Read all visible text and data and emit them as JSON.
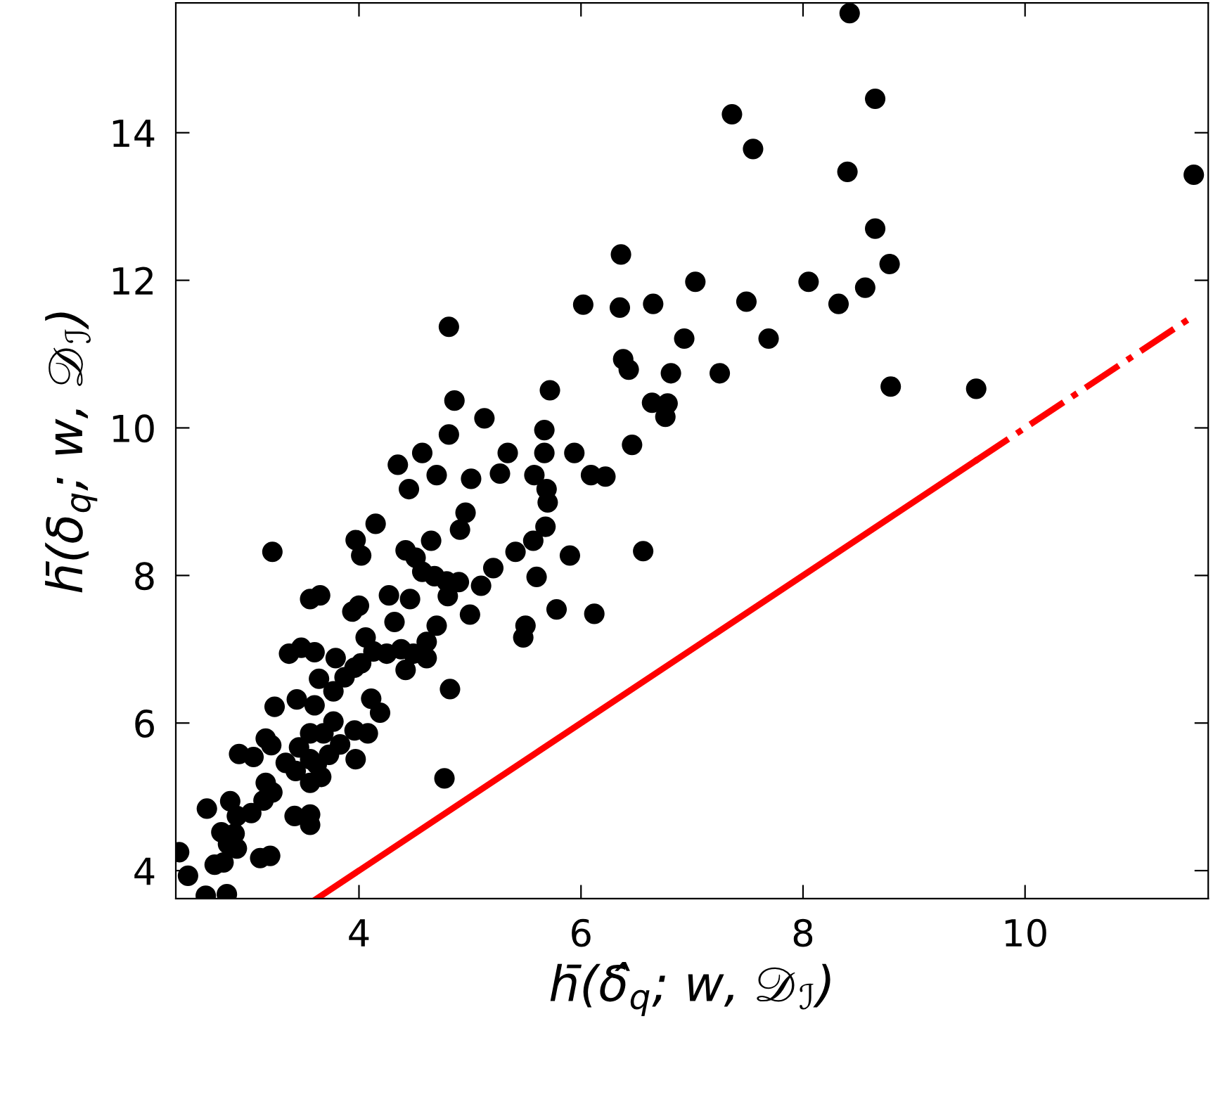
{
  "chart_data": {
    "type": "scatter",
    "xlabel": "h̄(δ̂$_{q}$; w, 𝒟$_{ℐ}$)",
    "ylabel": "h̄(δ$_{q}$; w, 𝒟$_{ℐ}$)",
    "xlim": [
      2.35,
      11.65
    ],
    "ylim": [
      3.62,
      15.76
    ],
    "xticks": [
      4,
      6,
      8,
      10
    ],
    "yticks": [
      4,
      6,
      8,
      10,
      12,
      14
    ],
    "grid": false,
    "series": [
      {
        "color": "#000000",
        "marker": "circle",
        "x": [
          2.38,
          2.46,
          2.62,
          2.81,
          2.63,
          2.7,
          2.78,
          2.76,
          2.88,
          2.82,
          2.9,
          2.84,
          2.9,
          3.03,
          3.11,
          3.2,
          3.14,
          3.22,
          3.16,
          2.92,
          3.05,
          3.16,
          3.21,
          3.24,
          3.22,
          3.34,
          3.43,
          3.46,
          3.42,
          3.56,
          3.56,
          3.44,
          3.6,
          3.56,
          3.56,
          3.56,
          3.66,
          3.62,
          3.73,
          3.68,
          3.77,
          3.83,
          3.97,
          3.96,
          4.08,
          3.64,
          3.77,
          3.37,
          3.48,
          3.6,
          3.79,
          3.87,
          3.96,
          4.02,
          4.06,
          4.13,
          4.11,
          4.19,
          4.25,
          4.38,
          4.49,
          4.42,
          4.61,
          4.61,
          4.32,
          4.27,
          4.46,
          3.56,
          3.65,
          3.94,
          4.0,
          3.97,
          4.02,
          4.15,
          4.42,
          4.51,
          4.57,
          4.68,
          4.65,
          4.79,
          4.9,
          4.8,
          4.7,
          5.0,
          4.82,
          4.77,
          4.91,
          4.96,
          5.1,
          5.21,
          5.41,
          5.57,
          5.6,
          5.5,
          5.48,
          5.68,
          5.78,
          5.9,
          6.12,
          6.56,
          4.45,
          4.7,
          5.01,
          5.34,
          5.67,
          5.67,
          5.94,
          6.46,
          5.27,
          5.58,
          5.69,
          5.7,
          6.09,
          6.22,
          4.81,
          4.35,
          4.57,
          4.81,
          4.86,
          5.13,
          5.72,
          6.02,
          6.36,
          6.35,
          6.65,
          6.38,
          6.43,
          6.81,
          6.64,
          6.78,
          6.76,
          8.42,
          8.65,
          7.36,
          7.55,
          8.4,
          11.52,
          8.65,
          8.78,
          7.03,
          8.05,
          7.49,
          8.32,
          8.56,
          6.93,
          7.69,
          7.25,
          8.79,
          9.56
        ],
        "values": [
          4.25,
          3.93,
          3.66,
          3.68,
          4.84,
          4.08,
          4.11,
          4.52,
          4.5,
          4.36,
          4.3,
          4.94,
          4.74,
          4.78,
          4.17,
          4.2,
          4.95,
          5.06,
          5.19,
          5.58,
          5.54,
          5.79,
          5.7,
          6.22,
          8.32,
          5.46,
          5.35,
          5.67,
          4.74,
          4.76,
          4.62,
          6.32,
          6.24,
          5.86,
          5.51,
          5.19,
          5.27,
          5.44,
          5.57,
          5.86,
          6.02,
          5.71,
          5.51,
          5.9,
          5.86,
          6.6,
          6.43,
          6.94,
          7.02,
          6.96,
          6.88,
          6.62,
          6.75,
          6.81,
          7.16,
          6.97,
          6.33,
          6.14,
          6.94,
          7.0,
          6.94,
          6.72,
          7.1,
          6.88,
          7.37,
          7.73,
          7.68,
          7.68,
          7.73,
          7.51,
          7.59,
          8.48,
          8.27,
          8.7,
          8.34,
          8.24,
          8.05,
          7.99,
          8.47,
          7.92,
          7.91,
          7.72,
          7.32,
          7.47,
          6.46,
          5.25,
          8.62,
          8.85,
          7.86,
          8.1,
          8.32,
          8.47,
          7.98,
          7.32,
          7.16,
          8.66,
          7.54,
          8.27,
          7.48,
          8.33,
          9.17,
          9.36,
          9.31,
          9.66,
          9.97,
          9.66,
          9.66,
          9.77,
          9.38,
          9.36,
          9.17,
          8.99,
          9.36,
          9.34,
          9.91,
          9.5,
          9.66,
          11.37,
          10.37,
          10.13,
          10.51,
          11.67,
          12.35,
          11.63,
          11.68,
          10.93,
          10.79,
          10.74,
          10.34,
          10.33,
          10.15,
          15.62,
          14.46,
          14.25,
          13.78,
          13.47,
          13.43,
          12.7,
          12.22,
          11.98,
          11.98,
          11.71,
          11.68,
          11.9,
          11.21,
          11.21,
          10.74,
          10.56,
          10.53
        ]
      },
      {
        "type": "line",
        "color": "#ff0000",
        "marker": "none",
        "line_style": "solid",
        "x": [
          3.62,
          9.55
        ],
        "values": [
          3.62,
          9.55
        ]
      },
      {
        "type": "line",
        "color": "#ff0000",
        "marker": "none",
        "line_style": "dashdot",
        "x": [
          9.55,
          11.52
        ],
        "values": [
          9.55,
          11.52
        ]
      }
    ]
  }
}
